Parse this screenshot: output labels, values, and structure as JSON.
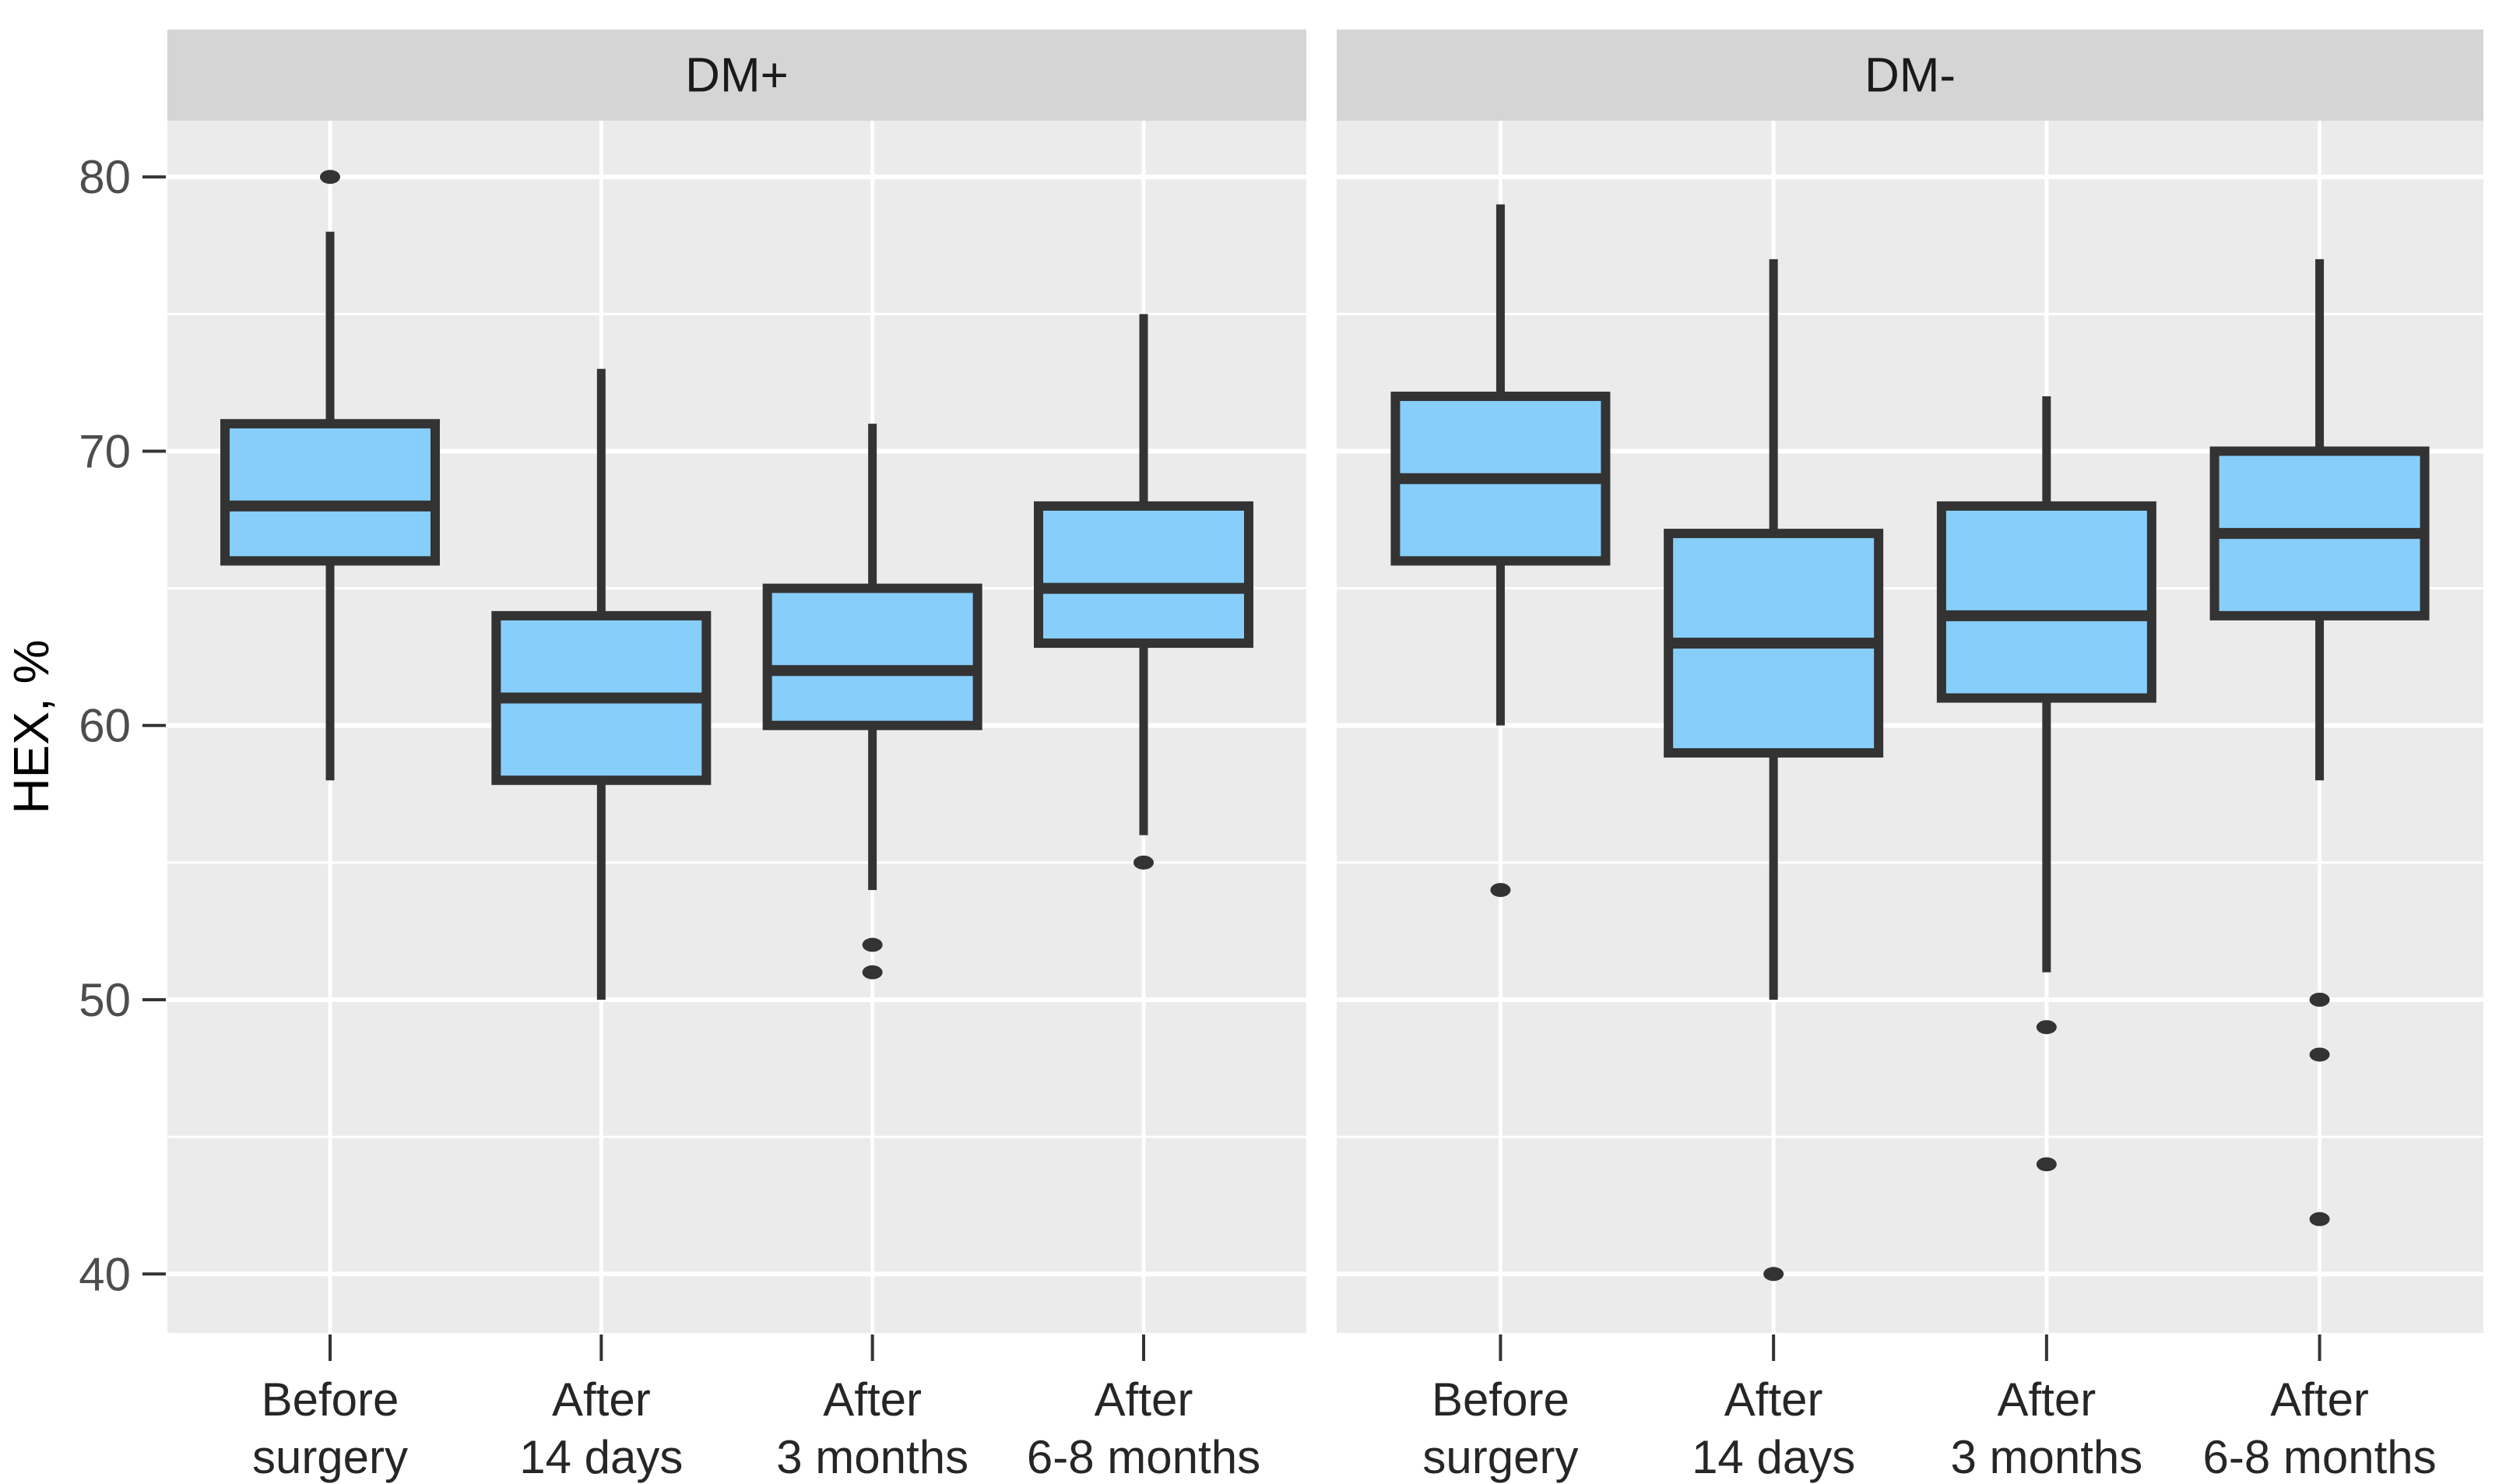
{
  "chart_data": {
    "type": "boxplot",
    "y_axis_title": "HEX, %",
    "y_ticks": [
      80,
      70,
      60,
      50,
      40
    ],
    "y_minor_gridlines": [
      75,
      65,
      55,
      45
    ],
    "ylim": [
      37.85,
      82.05
    ],
    "grid": "on",
    "categories": [
      "Before surgery",
      "After 14 days",
      "After 3 months",
      "After 6-8 months"
    ],
    "category_label_lines": [
      [
        "Before",
        "surgery"
      ],
      [
        "After",
        "14 days"
      ],
      [
        "After",
        "3 months"
      ],
      [
        "After",
        "6-8 months"
      ]
    ],
    "facets": [
      {
        "label": "DM+",
        "boxes": [
          {
            "category": "Before surgery",
            "lower_whisker": 58,
            "q1": 66,
            "median": 68,
            "q3": 71,
            "upper_whisker": 78,
            "outliers": [
              80
            ]
          },
          {
            "category": "After 14 days",
            "lower_whisker": 50,
            "q1": 58,
            "median": 61,
            "q3": 64,
            "upper_whisker": 73,
            "outliers": []
          },
          {
            "category": "After 3 months",
            "lower_whisker": 54,
            "q1": 60,
            "median": 62,
            "q3": 65,
            "upper_whisker": 71,
            "outliers": [
              52,
              51
            ]
          },
          {
            "category": "After 6-8 months",
            "lower_whisker": 56,
            "q1": 63,
            "median": 65,
            "q3": 68,
            "upper_whisker": 75,
            "outliers": [
              55
            ]
          }
        ]
      },
      {
        "label": "DM-",
        "boxes": [
          {
            "category": "Before surgery",
            "lower_whisker": 60,
            "q1": 66,
            "median": 69,
            "q3": 72,
            "upper_whisker": 79,
            "outliers": [
              54
            ]
          },
          {
            "category": "After 14 days",
            "lower_whisker": 50,
            "q1": 59,
            "median": 63,
            "q3": 67,
            "upper_whisker": 77,
            "outliers": [
              40
            ]
          },
          {
            "category": "After 3 months",
            "lower_whisker": 51,
            "q1": 61,
            "median": 64,
            "q3": 68,
            "upper_whisker": 72,
            "outliers": [
              49,
              44
            ]
          },
          {
            "category": "After 6-8 months",
            "lower_whisker": 58,
            "q1": 64,
            "median": 67,
            "q3": 70,
            "upper_whisker": 77,
            "outliers": [
              50,
              48,
              42
            ]
          }
        ]
      }
    ]
  },
  "colors": {
    "box_fill": "#87CEFA",
    "box_stroke": "#333333",
    "median_line": "#333333",
    "whisker": "#333333",
    "outlier": "#333333",
    "panel_bg": "#EBEBEB",
    "strip_bg": "#D5D5D5",
    "strip_text": "#1A1A1A",
    "gridline": "#FFFFFF",
    "axis_tick": "#333333",
    "y_tick_label": "#4D4D4D",
    "x_tick_label": "#262626",
    "y_axis_title_color": "#000000",
    "background": "#FFFFFF"
  }
}
